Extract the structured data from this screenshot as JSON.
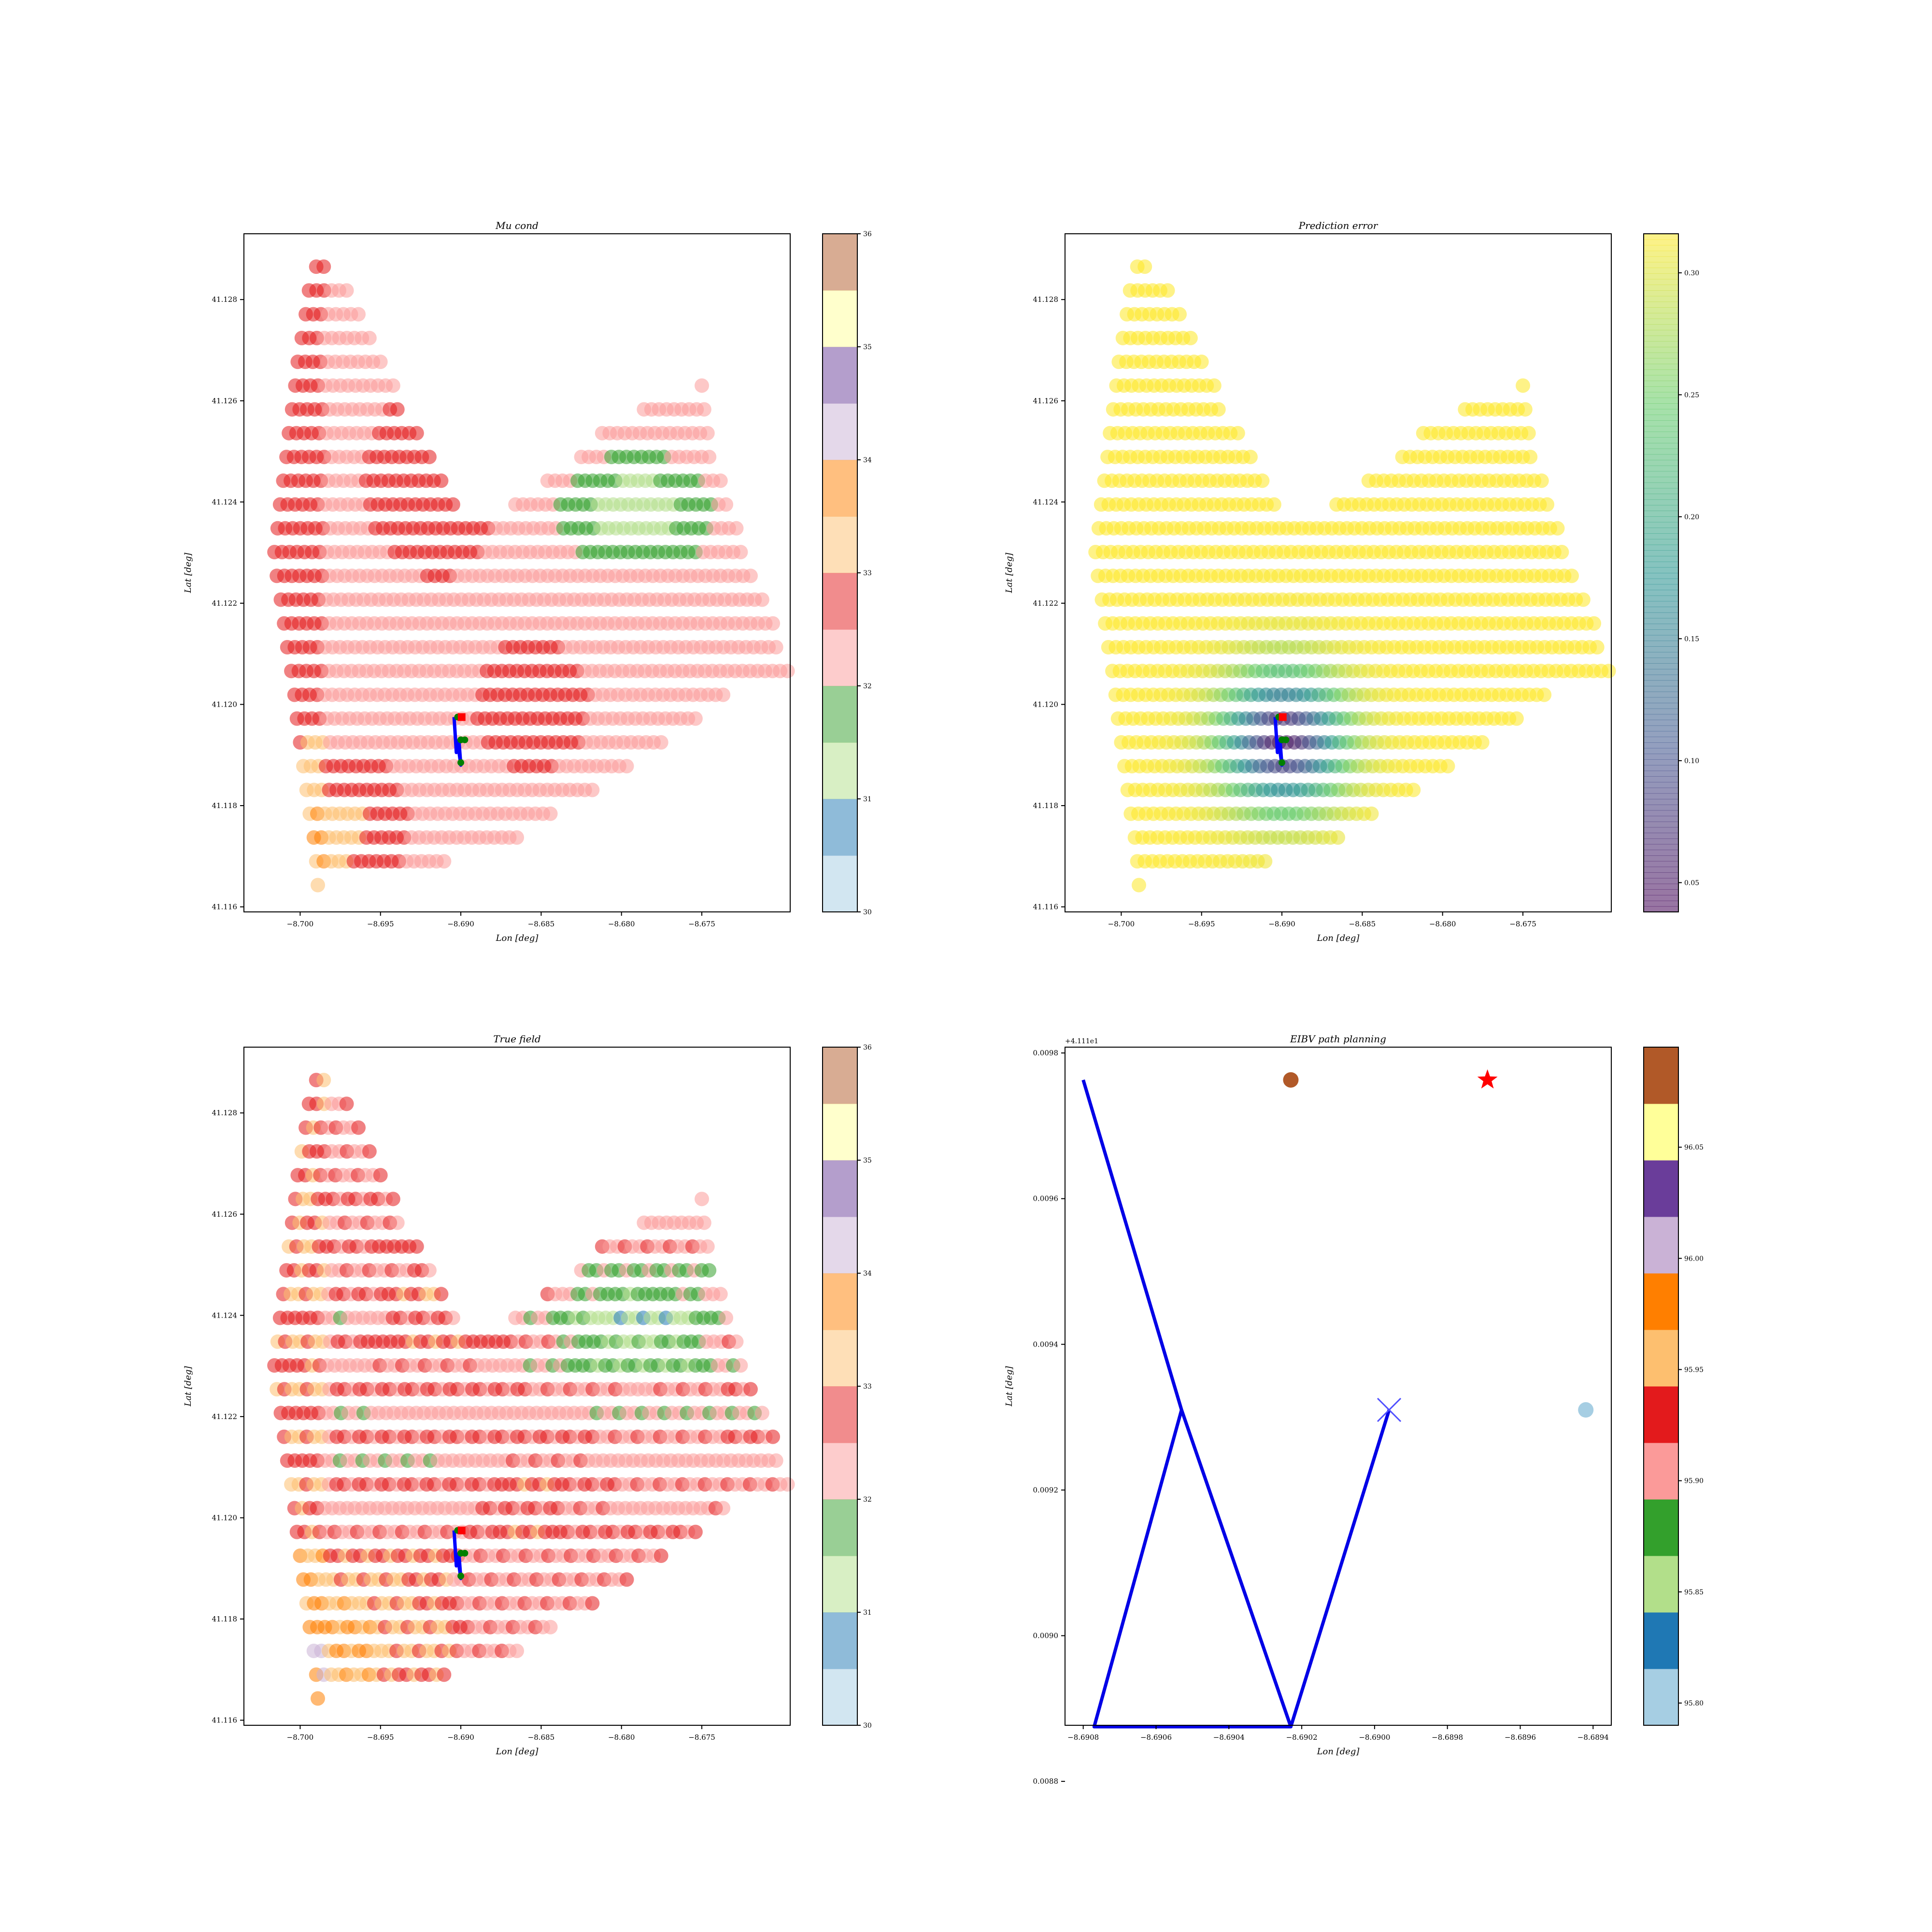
{
  "chart_data": [
    {
      "type": "scatter",
      "title": "Mu cond",
      "xlabel": "Lon [deg]",
      "ylabel": "Lat [deg]",
      "xlim": [
        -8.7035,
        -8.6695
      ],
      "ylim": [
        41.1159,
        41.1293
      ],
      "xticks": [
        -8.7,
        -8.695,
        -8.69,
        -8.685,
        -8.68,
        -8.675
      ],
      "xtick_labels": [
        "−8.700",
        "−8.695",
        "−8.690",
        "−8.685",
        "−8.680",
        "−8.675"
      ],
      "yticks": [
        41.116,
        41.118,
        41.12,
        41.122,
        41.124,
        41.126,
        41.128
      ],
      "ytick_labels": [
        "41.116",
        "41.118",
        "41.120",
        "41.122",
        "41.124",
        "41.126",
        "41.128"
      ],
      "colorbar": {
        "cmap": "Paired",
        "range": [
          30,
          36
        ],
        "ticks": [
          30,
          31,
          32,
          33,
          34,
          35,
          36
        ],
        "tick_labels": [
          "30",
          "31",
          "32",
          "33",
          "34",
          "35",
          "36"
        ]
      },
      "field": "mu_cond",
      "path": [
        {
          "x": -8.69042,
          "y": 41.11975
        },
        {
          "x": -8.69028,
          "y": 41.11905
        },
        {
          "x": -8.69012,
          "y": 41.1193
        },
        {
          "x": -8.69,
          "y": 41.1188
        },
        {
          "x": -8.69022,
          "y": 41.1193
        }
      ],
      "markers": [
        {
          "x": -8.6902,
          "y": 41.11975,
          "color": "#008000"
        },
        {
          "x": -8.68995,
          "y": 41.11975,
          "color": "#ff0000",
          "shape": "square"
        },
        {
          "x": -8.69,
          "y": 41.1193,
          "color": "#008000"
        },
        {
          "x": -8.68975,
          "y": 41.1193,
          "color": "#008000"
        },
        {
          "x": -8.69,
          "y": 41.11885,
          "color": "#008000"
        }
      ]
    },
    {
      "type": "scatter",
      "title": "Prediction error",
      "xlabel": "Lon [deg]",
      "ylabel": "Lat [deg]",
      "xlim": [
        -8.7035,
        -8.6695
      ],
      "ylim": [
        41.1159,
        41.1293
      ],
      "xticks": [
        -8.7,
        -8.695,
        -8.69,
        -8.685,
        -8.68,
        -8.675
      ],
      "xtick_labels": [
        "−8.700",
        "−8.695",
        "−8.690",
        "−8.685",
        "−8.680",
        "−8.675"
      ],
      "yticks": [
        41.116,
        41.118,
        41.12,
        41.122,
        41.124,
        41.126,
        41.128
      ],
      "ytick_labels": [
        "41.116",
        "41.118",
        "41.120",
        "41.122",
        "41.124",
        "41.126",
        "41.128"
      ],
      "colorbar": {
        "cmap": "viridis",
        "range": [
          0.038,
          0.316
        ],
        "ticks": [
          0.05,
          0.1,
          0.15,
          0.2,
          0.25,
          0.3
        ],
        "tick_labels": [
          "0.05",
          "0.10",
          "0.15",
          "0.20",
          "0.25",
          "0.30"
        ]
      },
      "field": "prediction_error",
      "path": [
        {
          "x": -8.69042,
          "y": 41.11975
        },
        {
          "x": -8.69028,
          "y": 41.11905
        },
        {
          "x": -8.69012,
          "y": 41.1193
        },
        {
          "x": -8.69,
          "y": 41.1188
        },
        {
          "x": -8.69022,
          "y": 41.1193
        }
      ],
      "markers": [
        {
          "x": -8.6902,
          "y": 41.11975,
          "color": "#008000"
        },
        {
          "x": -8.68995,
          "y": 41.11975,
          "color": "#ff0000",
          "shape": "square"
        },
        {
          "x": -8.69,
          "y": 41.1193,
          "color": "#008000"
        },
        {
          "x": -8.68975,
          "y": 41.1193,
          "color": "#008000"
        },
        {
          "x": -8.69,
          "y": 41.11885,
          "color": "#008000"
        }
      ]
    },
    {
      "type": "scatter",
      "title": "True field",
      "xlabel": "Lon [deg]",
      "ylabel": "Lat [deg]",
      "xlim": [
        -8.7035,
        -8.6695
      ],
      "ylim": [
        41.1159,
        41.1293
      ],
      "xticks": [
        -8.7,
        -8.695,
        -8.69,
        -8.685,
        -8.68,
        -8.675
      ],
      "xtick_labels": [
        "−8.700",
        "−8.695",
        "−8.690",
        "−8.685",
        "−8.680",
        "−8.675"
      ],
      "yticks": [
        41.116,
        41.118,
        41.12,
        41.122,
        41.124,
        41.126,
        41.128
      ],
      "ytick_labels": [
        "41.116",
        "41.118",
        "41.120",
        "41.122",
        "41.124",
        "41.126",
        "41.128"
      ],
      "colorbar": {
        "cmap": "Paired",
        "range": [
          30,
          36
        ],
        "ticks": [
          30,
          31,
          32,
          33,
          34,
          35,
          36
        ],
        "tick_labels": [
          "30",
          "31",
          "32",
          "33",
          "34",
          "35",
          "36"
        ]
      },
      "field": "true_field",
      "path": [
        {
          "x": -8.69042,
          "y": 41.11975
        },
        {
          "x": -8.69028,
          "y": 41.11905
        },
        {
          "x": -8.69012,
          "y": 41.1193
        },
        {
          "x": -8.69,
          "y": 41.1188
        },
        {
          "x": -8.69022,
          "y": 41.1193
        }
      ],
      "markers": [
        {
          "x": -8.6902,
          "y": 41.11975,
          "color": "#008000"
        },
        {
          "x": -8.68995,
          "y": 41.11975,
          "color": "#ff0000",
          "shape": "square"
        },
        {
          "x": -8.69,
          "y": 41.1193,
          "color": "#008000"
        },
        {
          "x": -8.68975,
          "y": 41.1193,
          "color": "#008000"
        },
        {
          "x": -8.69,
          "y": 41.11885,
          "color": "#008000"
        }
      ]
    },
    {
      "type": "line",
      "title": "EIBV path planning",
      "xlabel": "Lon [deg]",
      "ylabel": "Lat [deg]",
      "offset_text": "+4.111e1",
      "xlim": [
        -8.69085,
        -8.68935
      ],
      "ylim": [
        0.008877,
        0.009808
      ],
      "xticks": [
        -8.6908,
        -8.6906,
        -8.6904,
        -8.6902,
        -8.69,
        -8.6898,
        -8.6896,
        -8.6894
      ],
      "xtick_labels": [
        "−8.6908",
        "−8.6906",
        "−8.6904",
        "−8.6902",
        "−8.6900",
        "−8.6898",
        "−8.6896",
        "−8.6894"
      ],
      "yticks": [
        0.0088,
        0.009,
        0.0092,
        0.0094,
        0.0096,
        0.0098
      ],
      "ytick_labels": [
        "0.0088",
        "0.0090",
        "0.0092",
        "0.0094",
        "0.0096",
        "0.0098"
      ],
      "colorbar": {
        "cmap": "Paired",
        "range": [
          95.79,
          96.095
        ],
        "ticks": [
          95.8,
          95.85,
          95.9,
          95.95,
          96.0,
          96.05
        ],
        "tick_labels": [
          "95.80",
          "95.85",
          "95.90",
          "95.95",
          "96.00",
          "96.05"
        ]
      },
      "path": [
        {
          "x": -8.6908,
          "y": 0.009763
        },
        {
          "x": -8.69053,
          "y": 0.00931
        },
        {
          "x": -8.69077,
          "y": 0.008875
        },
        {
          "x": -8.69023,
          "y": 0.008875
        },
        {
          "x": -8.69053,
          "y": 0.00931
        }
      ],
      "path2": [
        {
          "x": -8.69023,
          "y": 0.008875
        },
        {
          "x": -8.68996,
          "y": 0.00931
        }
      ],
      "markers": [
        {
          "x": -8.69023,
          "y": 0.009763,
          "color": "#b15928",
          "shape": "circle"
        },
        {
          "x": -8.68969,
          "y": 0.009763,
          "color": "#ff0000",
          "shape": "star"
        },
        {
          "x": -8.68996,
          "y": 0.00931,
          "color": "#5050ff",
          "shape": "x"
        },
        {
          "x": -8.68942,
          "y": 0.00931,
          "color": "#a6cee3",
          "shape": "circle"
        }
      ]
    }
  ]
}
